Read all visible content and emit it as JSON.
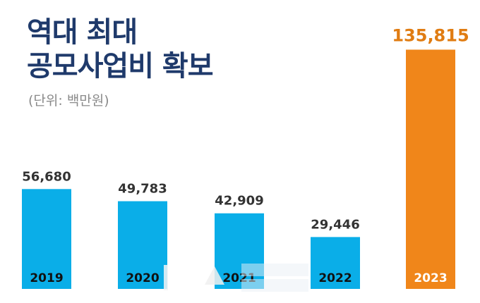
{
  "header": {
    "title_line1": "역대 최대",
    "title_line2": "공모사업비 확보",
    "unit": "(단위: 백만원)"
  },
  "colors": {
    "title": "#1f3a6b",
    "bar_default": "#0aaee8",
    "bar_highlight": "#f0861a",
    "label_default": "#333333",
    "label_highlight": "#e07c12"
  },
  "chart_data": {
    "type": "bar",
    "categories": [
      "2019",
      "2020",
      "2021",
      "2022",
      "2023"
    ],
    "values": [
      56680,
      49783,
      42909,
      29446,
      135815
    ],
    "value_labels": [
      "56,680",
      "49,783",
      "42,909",
      "29,446",
      "135,815"
    ],
    "highlight_index": 4,
    "ylim": [
      0,
      140000
    ],
    "grid": false,
    "legend": "none"
  }
}
